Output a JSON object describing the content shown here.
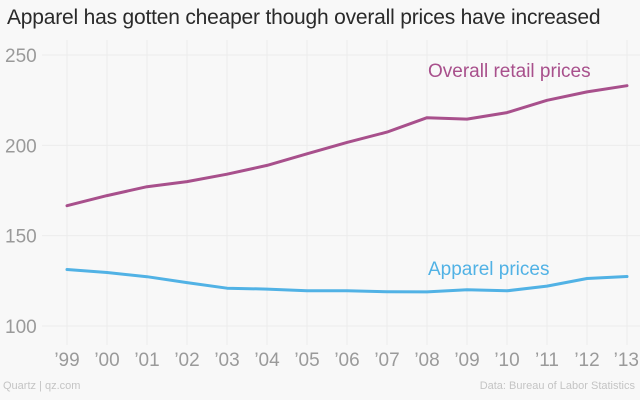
{
  "title": "Apparel has gotten cheaper though overall prices have increased",
  "footer": {
    "source_left": "Quartz | qz.com",
    "source_right": "Data: Bureau of Labor Statistics"
  },
  "chart_data": {
    "type": "line",
    "title": "Apparel has gotten cheaper though overall prices have increased",
    "xlabel": "",
    "ylabel": "",
    "categories": [
      "’99",
      "’00",
      "’01",
      "’02",
      "’03",
      "’04",
      "’05",
      "’06",
      "’07",
      "’08",
      "’09",
      "’10",
      "’11",
      "’12",
      "’13"
    ],
    "x": [
      1999,
      2000,
      2001,
      2002,
      2003,
      2004,
      2005,
      2006,
      2007,
      2008,
      2009,
      2010,
      2011,
      2012,
      2013
    ],
    "yticks": [
      100,
      150,
      200,
      250
    ],
    "ytick_labels": [
      "100",
      "150",
      "200",
      "250"
    ],
    "ylim": [
      96,
      255
    ],
    "grid": true,
    "legend": "direct-labels",
    "series": [
      {
        "name": "Overall retail prices",
        "color": "#a8508c",
        "values": [
          166.6,
          172.2,
          177.1,
          179.9,
          184.0,
          188.9,
          195.3,
          201.6,
          207.3,
          215.3,
          214.5,
          218.1,
          224.9,
          229.6,
          233.0
        ]
      },
      {
        "name": "Apparel prices",
        "color": "#51b2e5",
        "values": [
          131.3,
          129.6,
          127.3,
          124.0,
          120.9,
          120.4,
          119.5,
          119.5,
          119.0,
          118.9,
          120.1,
          119.5,
          122.1,
          126.3,
          127.4
        ]
      }
    ]
  }
}
